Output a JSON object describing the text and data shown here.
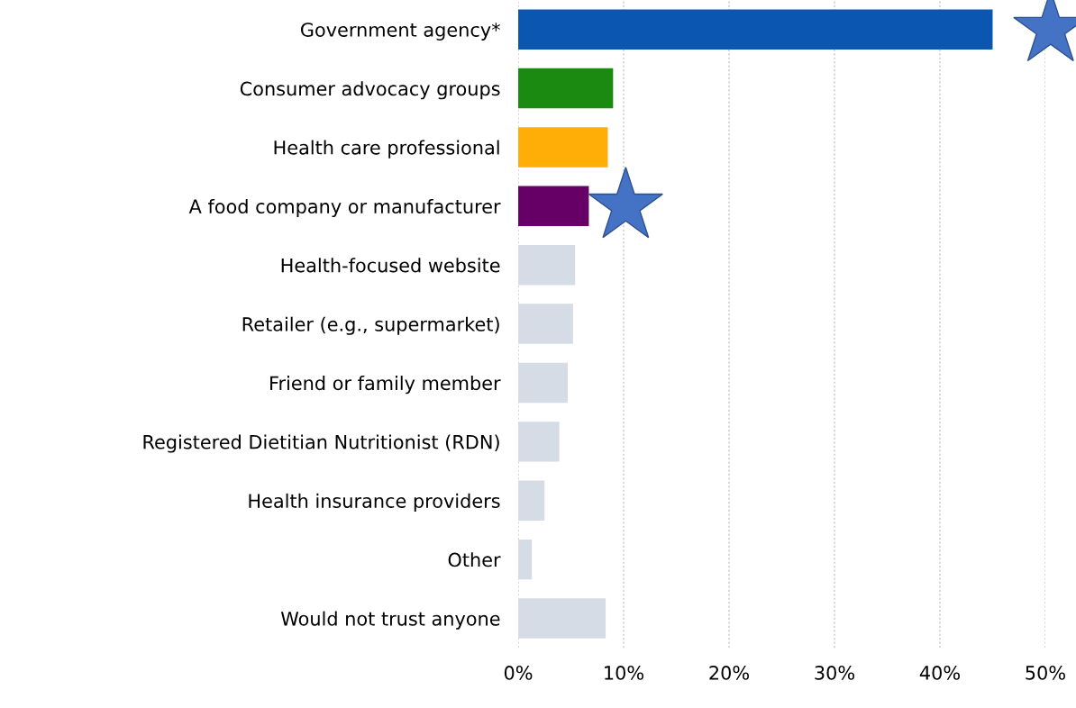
{
  "chart_data": {
    "type": "bar",
    "orientation": "horizontal",
    "categories": [
      "Government agency*",
      "Consumer advocacy groups",
      "Health care professional",
      "A food company or manufacturer",
      "Health-focused website",
      "Retailer (e.g., supermarket)",
      "Friend or family member",
      "Registered Dietitian Nutritionist (RDN)",
      "Health insurance providers",
      "Other",
      "Would not trust anyone"
    ],
    "values": [
      45,
      9.0,
      8.5,
      6.7,
      5.4,
      5.2,
      4.7,
      3.9,
      2.5,
      1.3,
      8.3
    ],
    "colors": [
      "#0a56b0",
      "#1a8a10",
      "#ffae08",
      "#660066",
      "#d6dce5",
      "#d6dce5",
      "#d6dce5",
      "#d6dce5",
      "#d6dce5",
      "#d6dce5",
      "#d6dce5"
    ],
    "xlim": [
      0,
      50
    ],
    "xticks": [
      {
        "value": 0,
        "label": "0%"
      },
      {
        "value": 10,
        "label": "10%"
      },
      {
        "value": 20,
        "label": "20%"
      },
      {
        "value": 30,
        "label": "30%"
      },
      {
        "value": 40,
        "label": "40%"
      },
      {
        "value": 50,
        "label": "50%"
      }
    ],
    "grid": "x"
  }
}
